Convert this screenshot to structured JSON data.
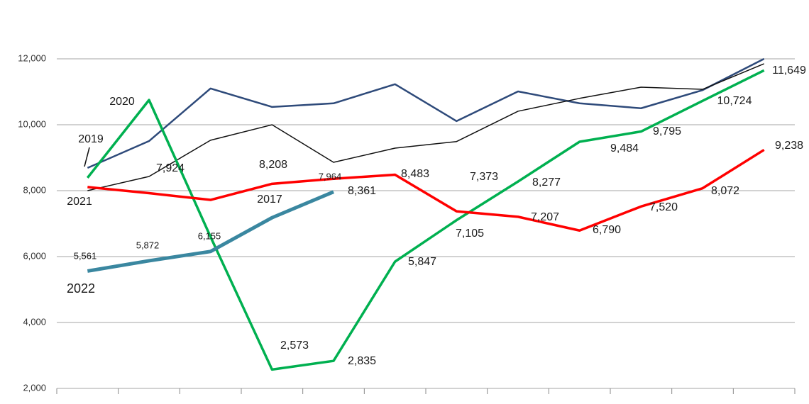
{
  "chart_data": {
    "type": "line",
    "categories": [
      null,
      null,
      null,
      null,
      null,
      null,
      null,
      null,
      null,
      null,
      null,
      null
    ],
    "ylim": [
      2000,
      12000
    ],
    "yticks": [
      {
        "value": 2000,
        "label": "2,000"
      },
      {
        "value": 4000,
        "label": "4,000"
      },
      {
        "value": 6000,
        "label": "6,000"
      },
      {
        "value": 8000,
        "label": "8,000"
      },
      {
        "value": 10000,
        "label": "10,000"
      },
      {
        "value": 12000,
        "label": "12,000"
      }
    ],
    "grid": true,
    "series": [
      {
        "name": "2019",
        "color": "#2e4a7a",
        "values": [
          8690,
          9505,
          11100,
          10540,
          10650,
          11230,
          10110,
          11010,
          10650,
          10500,
          11050,
          12000
        ]
      },
      {
        "name": "2021",
        "color": "#111111",
        "values": [
          8000,
          8430,
          9530,
          10000,
          8860,
          9290,
          9490,
          10410,
          10800,
          11140,
          11075,
          11850
        ]
      },
      {
        "name": "2020",
        "color": "#00b050",
        "values": [
          8390,
          10750,
          6600,
          2573,
          2835,
          5847,
          7105,
          8277,
          9484,
          9795,
          10724,
          11649
        ],
        "value_labels": [
          null,
          null,
          null,
          "2,573",
          "2,835",
          "5,847",
          "7,105",
          "8,277",
          "9,484",
          "9,795",
          "10,724",
          "11,649"
        ]
      },
      {
        "name": "2017",
        "color": "#ff0000",
        "values": [
          8110,
          7924,
          7720,
          8208,
          8361,
          8483,
          7373,
          7207,
          6790,
          7520,
          8072,
          9238
        ],
        "value_labels": [
          null,
          "7,924",
          null,
          "8,208",
          "8,361",
          "8,483",
          "7,373",
          "7,207",
          "6,790",
          "7,520",
          "8,072",
          "9,238"
        ]
      },
      {
        "name": "2022",
        "color": "#3a87a0",
        "values": [
          5561,
          5872,
          6155,
          7180,
          7964,
          null,
          null,
          null,
          null,
          null,
          null,
          null
        ],
        "value_labels": [
          "5,561",
          "5,872",
          "6,155",
          null,
          "7,964",
          null,
          null,
          null,
          null,
          null,
          null,
          null
        ]
      }
    ]
  }
}
